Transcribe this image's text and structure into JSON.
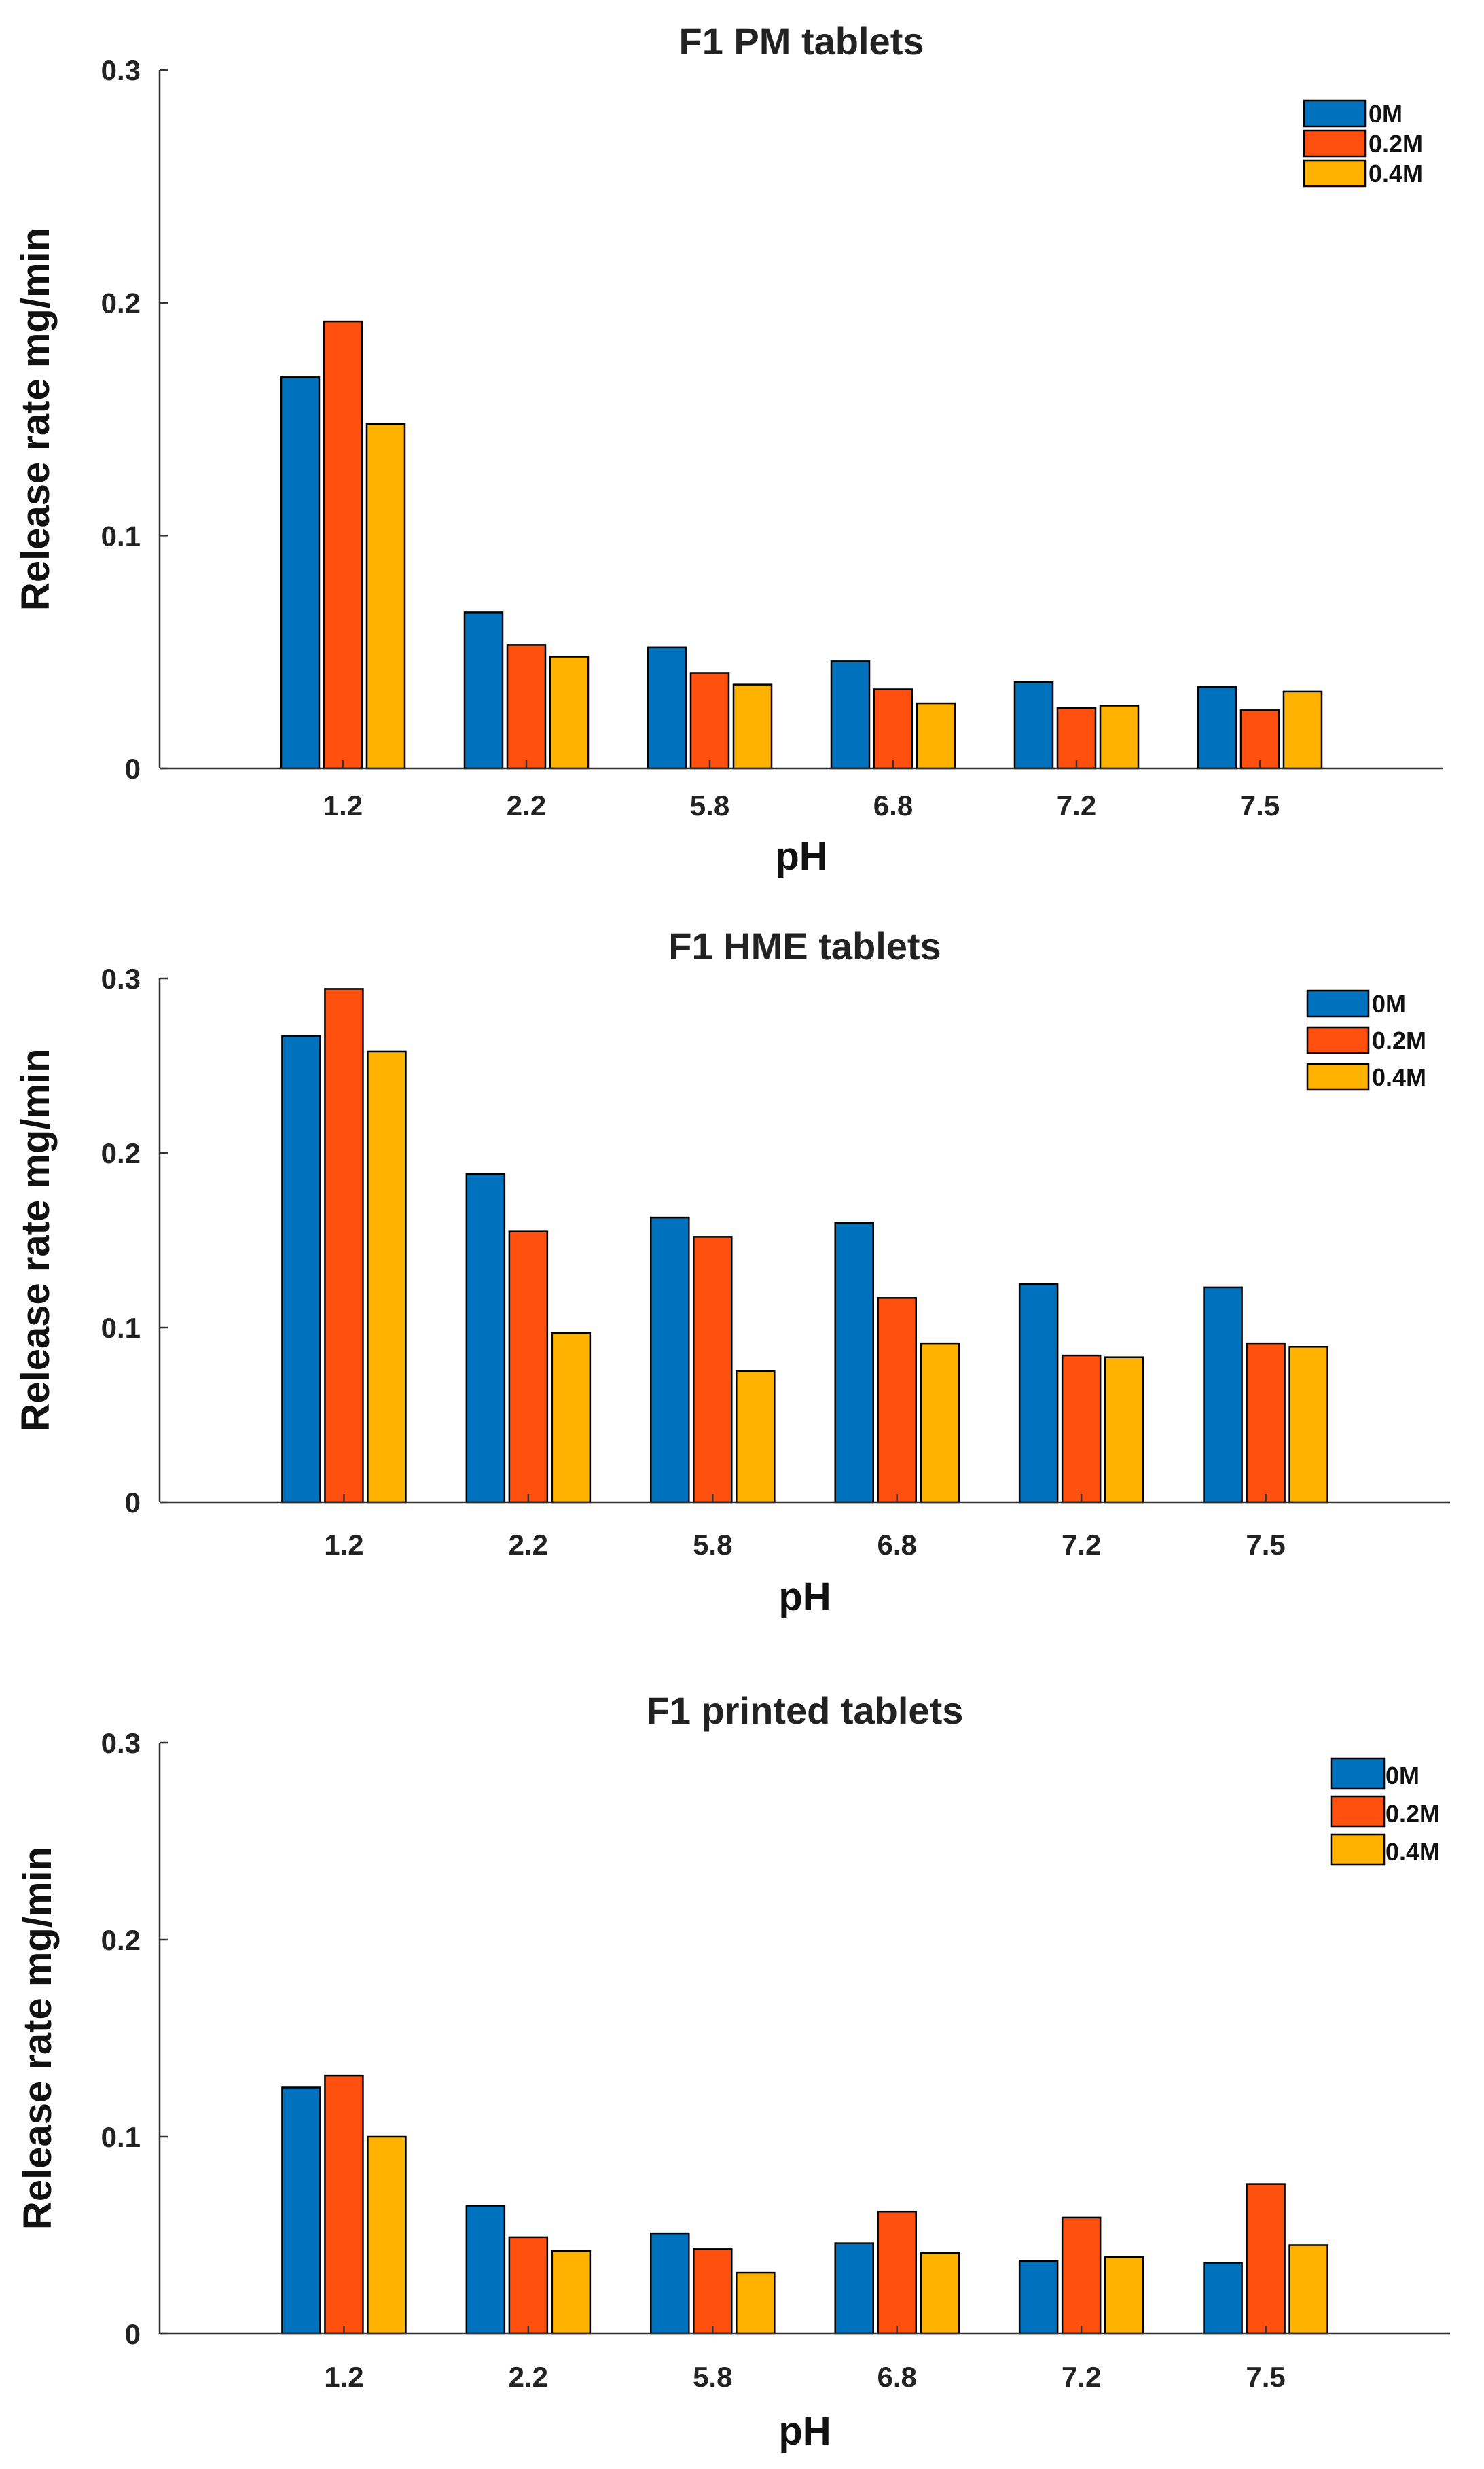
{
  "chart_data": [
    {
      "type": "bar",
      "title": "F1 PM tablets",
      "xlabel": "pH",
      "ylabel": "Release rate mg/min",
      "categories": [
        "1.2",
        "2.2",
        "5.8",
        "6.8",
        "7.2",
        "7.5"
      ],
      "yticks": [
        "0",
        "0.1",
        "0.2",
        "0.3"
      ],
      "ylim": [
        0,
        0.3
      ],
      "grid": false,
      "legend_position": "top-right",
      "series": [
        {
          "name": "0M",
          "color": "#0072BD",
          "values": [
            0.168,
            0.067,
            0.052,
            0.046,
            0.037,
            0.035
          ]
        },
        {
          "name": "0.2M",
          "color": "#FF5010",
          "values": [
            0.192,
            0.053,
            0.041,
            0.034,
            0.026,
            0.025
          ]
        },
        {
          "name": "0.4M",
          "color": "#FFB300",
          "values": [
            0.148,
            0.048,
            0.036,
            0.028,
            0.027,
            0.033
          ]
        }
      ]
    },
    {
      "type": "bar",
      "title": "F1 HME tablets",
      "xlabel": "pH",
      "ylabel": "Release rate mg/min",
      "categories": [
        "1.2",
        "2.2",
        "5.8",
        "6.8",
        "7.2",
        "7.5"
      ],
      "yticks": [
        "0",
        "0.1",
        "0.2",
        "0.3"
      ],
      "ylim": [
        0,
        0.3
      ],
      "grid": false,
      "legend_position": "top-right",
      "series": [
        {
          "name": "0M",
          "color": "#0072BD",
          "values": [
            0.267,
            0.188,
            0.163,
            0.16,
            0.125,
            0.123
          ]
        },
        {
          "name": "0.2M",
          "color": "#FF5010",
          "values": [
            0.294,
            0.155,
            0.152,
            0.117,
            0.084,
            0.091
          ]
        },
        {
          "name": "0.4M",
          "color": "#FFB300",
          "values": [
            0.258,
            0.097,
            0.075,
            0.091,
            0.083,
            0.089
          ]
        }
      ]
    },
    {
      "type": "bar",
      "title": "F1 printed tablets",
      "xlabel": "pH",
      "ylabel": "Release rate mg/min",
      "categories": [
        "1.2",
        "2.2",
        "5.8",
        "6.8",
        "7.2",
        "7.5"
      ],
      "yticks": [
        "0",
        "0.1",
        "0.2",
        "0.3"
      ],
      "ylim": [
        0,
        0.3
      ],
      "grid": false,
      "legend_position": "top-right",
      "series": [
        {
          "name": "0M",
          "color": "#0072BD",
          "values": [
            0.125,
            0.065,
            0.051,
            0.046,
            0.037,
            0.036
          ]
        },
        {
          "name": "0.2M",
          "color": "#FF5010",
          "values": [
            0.131,
            0.049,
            0.043,
            0.062,
            0.059,
            0.076
          ]
        },
        {
          "name": "0.4M",
          "color": "#FFB300",
          "values": [
            0.1,
            0.042,
            0.031,
            0.041,
            0.039,
            0.045
          ]
        }
      ]
    }
  ]
}
